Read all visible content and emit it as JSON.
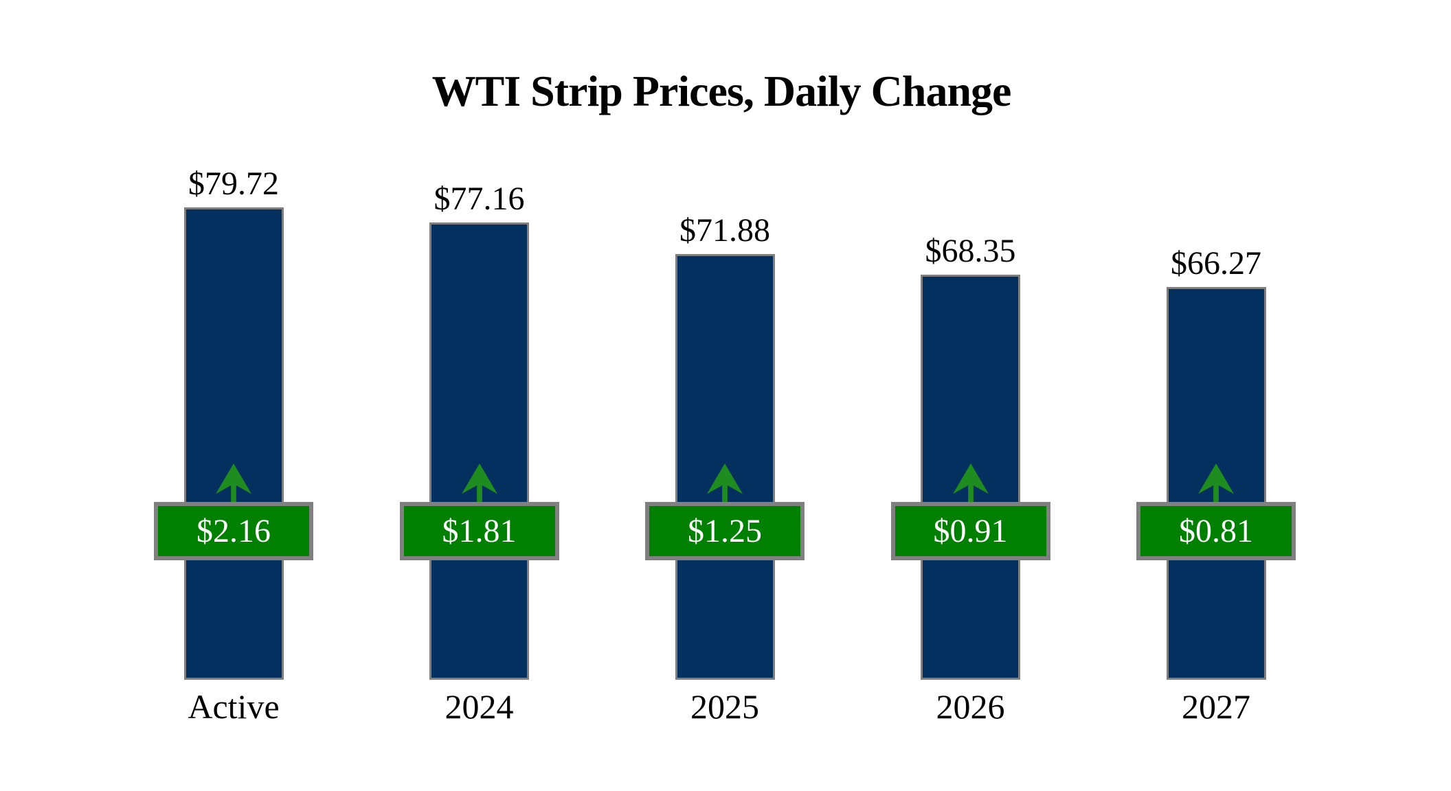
{
  "title": "WTI Strip Prices, Daily Change",
  "colors": {
    "bar_fill": "#03305E",
    "bar_border": "#7F7F7F",
    "badge_fill": "#008000",
    "badge_border": "#808080",
    "arrow_green": "#1E8C1E",
    "price_text": "#000000",
    "badge_text": "#FFFFFF",
    "background": "#FFFFFF"
  },
  "chart_data": {
    "type": "bar",
    "title": "WTI Strip Prices, Daily Change",
    "categories": [
      "Active",
      "2024",
      "2025",
      "2026",
      "2027"
    ],
    "series": [
      {
        "name": "Strip Price ($/bbl)",
        "values": [
          79.72,
          77.16,
          71.88,
          68.35,
          66.27
        ]
      },
      {
        "name": "Daily Change ($)",
        "values": [
          2.16,
          1.81,
          1.25,
          0.91,
          0.81
        ]
      }
    ],
    "price_labels": [
      "$79.72",
      "$77.16",
      "$71.88",
      "$68.35",
      "$66.27"
    ],
    "change_labels": [
      "$2.16",
      "$1.81",
      "$1.25",
      "$0.91",
      "$0.81"
    ],
    "change_direction": "up",
    "xlabel": "",
    "ylabel": "",
    "ylim": [
      0,
      85
    ],
    "grid": false,
    "legend": "none"
  }
}
